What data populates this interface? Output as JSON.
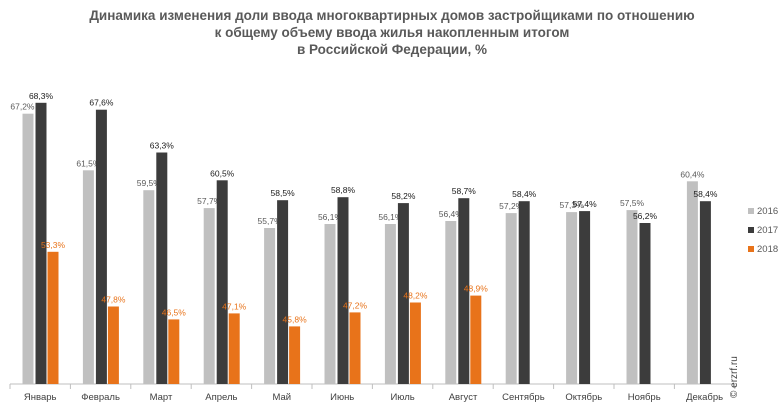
{
  "chart_data": {
    "type": "bar",
    "title": [
      "Динамика изменения доли ввода многоквартирных домов застройщиками по отношению",
      "к общему объему ввода жилья накопленным итогом",
      "в Российской Федерации, %"
    ],
    "xlabel": "",
    "ylabel": "",
    "ylim": [
      40,
      72
    ],
    "grid": false,
    "legend_position": "right",
    "categories": [
      "Январь",
      "Февраль",
      "Март",
      "Апрель",
      "Май",
      "Июнь",
      "Июль",
      "Август",
      "Сентябрь",
      "Октябрь",
      "Ноябрь",
      "Декабрь"
    ],
    "series": [
      {
        "name": "2016",
        "color": "#c0c0c0",
        "label_color": "#595959",
        "values": [
          67.2,
          61.5,
          59.5,
          57.7,
          55.7,
          56.1,
          56.1,
          56.4,
          57.2,
          57.3,
          57.5,
          60.4
        ],
        "labels": [
          "67,2%",
          "61,5%",
          "59,5%",
          "57,7%",
          "55,7%",
          "56,1%",
          "56,1%",
          "56,4%",
          "57,2%",
          "57,3%",
          "57,5%",
          "60,4%"
        ]
      },
      {
        "name": "2017",
        "color": "#3c3c3c",
        "label_color": "#1a1a1a",
        "values": [
          68.3,
          67.6,
          63.3,
          60.5,
          58.5,
          58.8,
          58.2,
          58.7,
          58.4,
          57.4,
          56.2,
          58.4
        ],
        "labels": [
          "68,3%",
          "67,6%",
          "63,3%",
          "60,5%",
          "58,5%",
          "58,8%",
          "58,2%",
          "58,7%",
          "58,4%",
          "57,4%",
          "56,2%",
          "58,4%"
        ]
      },
      {
        "name": "2018",
        "color": "#e8731a",
        "label_color": "#e8731a",
        "values": [
          53.3,
          47.8,
          46.5,
          47.1,
          45.8,
          47.2,
          48.2,
          48.9,
          null,
          null,
          null,
          null
        ],
        "labels": [
          "53,3%",
          "47,8%",
          "46,5%",
          "47,1%",
          "45,8%",
          "47,2%",
          "48,2%",
          "48,9%",
          "",
          "",
          "",
          ""
        ]
      }
    ]
  },
  "watermark": "© erzrf.ru"
}
